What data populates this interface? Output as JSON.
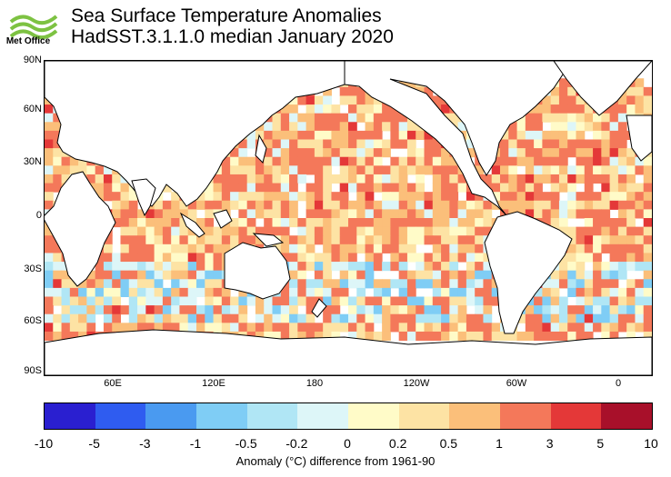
{
  "header": {
    "logo_text": "Met Office",
    "title_line1": "Sea Surface Temperature Anomalies",
    "title_line2": "HadSST.3.1.1.0 median January 2020"
  },
  "map": {
    "lat_labels": [
      "90N",
      "60N",
      "30N",
      "0",
      "30S",
      "60S",
      "90S"
    ],
    "lon_labels": [
      "60E",
      "120E",
      "180",
      "120W",
      "60W",
      "0"
    ]
  },
  "colorbar": {
    "labels": [
      "-10",
      "-5",
      "-3",
      "-1",
      "-0.5",
      "-0.2",
      "0",
      "0.2",
      "0.5",
      "1",
      "3",
      "5",
      "10"
    ],
    "colors": [
      "#2a1fd0",
      "#2f5cf0",
      "#4a9af0",
      "#7fcdf5",
      "#b0e6f5",
      "#ddf6f8",
      "#fffbc8",
      "#fde3a4",
      "#fbbf7a",
      "#f4785a",
      "#e43838",
      "#a8102a"
    ],
    "caption": "Anomaly (°C) difference from 1961-90"
  },
  "chart_data": {
    "type": "heatmap",
    "title": "Sea Surface Temperature Anomalies",
    "subtitle": "HadSST.3.1.1.0 median January 2020",
    "x_axis": "longitude",
    "y_axis": "latitude",
    "ylim": [
      -90,
      90
    ],
    "colorbar_levels": [
      -10,
      -5,
      -3,
      -1,
      -0.5,
      -0.2,
      0,
      0.2,
      0.5,
      1,
      3,
      5,
      10
    ],
    "colorbar_label": "Anomaly (°C) difference from 1961-90"
  }
}
